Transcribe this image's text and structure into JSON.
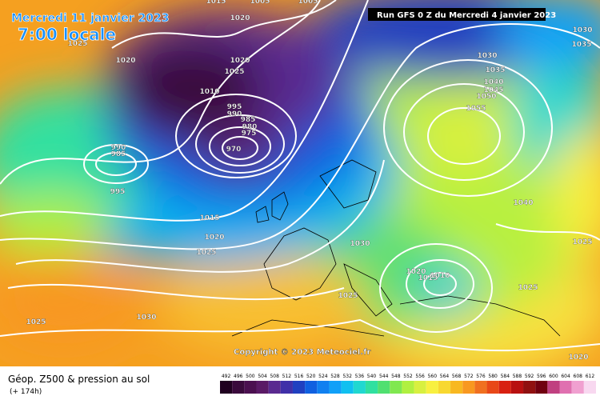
{
  "header": {
    "date": "Mercredi 11 janvier 2023",
    "time": "7:00 locale",
    "run": "Run GFS 0 Z du Mercredi 4 janvier 2023"
  },
  "copyright": "Copyright © 2023 Meteociel.fr",
  "legend": {
    "title": "Géop. Z500 & pression au sol",
    "subtitle": "(+ 174h)",
    "scale": [
      492,
      496,
      500,
      504,
      508,
      512,
      516,
      520,
      524,
      528,
      532,
      536,
      540,
      544,
      548,
      552,
      556,
      560,
      564,
      568,
      572,
      576,
      580,
      584,
      588,
      592,
      596,
      600,
      604,
      608,
      612
    ],
    "colors": [
      "#200020",
      "#3a0a3c",
      "#4b1050",
      "#5a1a66",
      "#5a2a90",
      "#4030a8",
      "#2040c0",
      "#1060e0",
      "#1080f0",
      "#10a0f8",
      "#10c0f0",
      "#20d8d0",
      "#30e0a0",
      "#50e070",
      "#80e850",
      "#b0f040",
      "#d8f040",
      "#f8f040",
      "#f8d830",
      "#f8b820",
      "#f89820",
      "#f07020",
      "#e84818",
      "#d82010",
      "#b81010",
      "#901010",
      "#700010",
      "#c04080",
      "#e070b0",
      "#f0a0d0",
      "#f8d8f0"
    ]
  },
  "isobar_labels": [
    "1015",
    "1005",
    "1005",
    "1020",
    "1025",
    "1020",
    "1020",
    "1025",
    "1010",
    "995",
    "990",
    "985",
    "980",
    "975",
    "970",
    "990",
    "985",
    "995",
    "1015",
    "1020",
    "1025",
    "1030",
    "1035",
    "1040",
    "1045",
    "1050",
    "1055",
    "1035",
    "1030",
    "1040",
    "1025",
    "1030",
    "1020",
    "1015",
    "1010",
    "1025",
    "1030",
    "1025",
    "1025",
    "1020"
  ]
}
